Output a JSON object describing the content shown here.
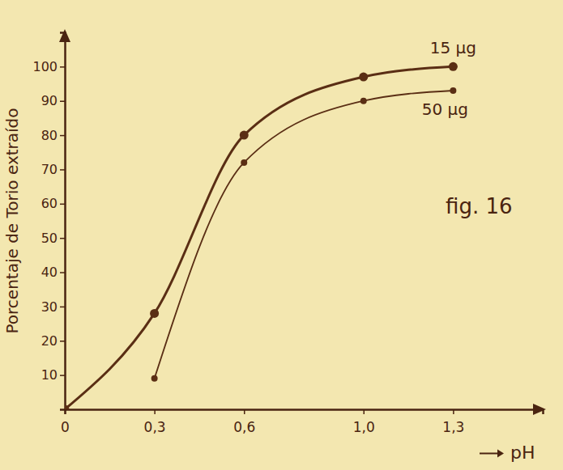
{
  "chart_data": {
    "type": "line",
    "y_label": "Porcentaje de Torio extraído",
    "x_label": "pH",
    "annotation": "fig. 16",
    "xlim": [
      0,
      1.6
    ],
    "ylim": [
      0,
      110
    ],
    "xticks": [
      {
        "value": 0,
        "label": "0"
      },
      {
        "value": 0.3,
        "label": "0,3"
      },
      {
        "value": 0.6,
        "label": "0,6"
      },
      {
        "value": 1.0,
        "label": "1,0"
      },
      {
        "value": 1.3,
        "label": "1,3"
      }
    ],
    "yticks": [
      10,
      20,
      30,
      40,
      50,
      60,
      70,
      80,
      90,
      100
    ],
    "grid": false,
    "marker": "circle",
    "series": [
      {
        "name": "15 µg",
        "color": "#5a2e14",
        "x": [
          0,
          0.3,
          0.6,
          1.0,
          1.3
        ],
        "values": [
          0,
          28,
          80,
          97,
          100
        ]
      },
      {
        "name": "50 µg",
        "color": "#5a2e14",
        "x": [
          0.3,
          0.6,
          1.0,
          1.3
        ],
        "values": [
          9,
          72,
          90,
          93
        ]
      }
    ]
  }
}
